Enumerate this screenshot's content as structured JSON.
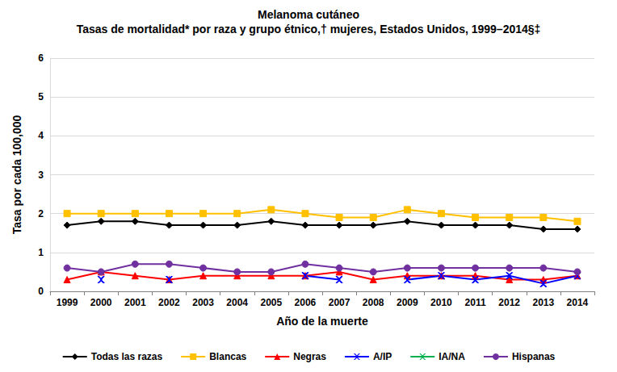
{
  "chart_data": {
    "type": "line",
    "title": "Melanoma cutáneo",
    "subtitle": "Tasas de mortalidad* por raza y grupo étnico,† mujeres, Estados Unidos, 1999–2014§‡",
    "x_label": "Año de la muerte",
    "y_label": "Tasa por cada 100,000",
    "categories": [
      "1999",
      "2000",
      "2001",
      "2002",
      "2003",
      "2004",
      "2005",
      "2006",
      "2007",
      "2008",
      "2009",
      "2010",
      "2011",
      "2012",
      "2013",
      "2014"
    ],
    "ylim": [
      0,
      6
    ],
    "yticks": [
      0,
      1,
      2,
      3,
      4,
      5,
      6
    ],
    "grid": true,
    "legend": "bottom",
    "series": [
      {
        "name": "Todas las razas",
        "color": "#000000",
        "marker": "diamond",
        "values": [
          1.7,
          1.8,
          1.8,
          1.7,
          1.7,
          1.7,
          1.8,
          1.7,
          1.7,
          1.7,
          1.8,
          1.7,
          1.7,
          1.7,
          1.6,
          1.6
        ]
      },
      {
        "name": "Blancas",
        "color": "#FFC000",
        "marker": "square",
        "values": [
          2.0,
          2.0,
          2.0,
          2.0,
          2.0,
          2.0,
          2.1,
          2.0,
          1.9,
          1.9,
          2.1,
          2.0,
          1.9,
          1.9,
          1.9,
          1.8
        ]
      },
      {
        "name": "Negras",
        "color": "#FF0000",
        "marker": "triangle",
        "values": [
          0.3,
          0.5,
          0.4,
          0.3,
          0.4,
          0.4,
          0.4,
          0.4,
          0.5,
          0.3,
          0.4,
          0.4,
          0.4,
          0.3,
          0.3,
          0.4
        ]
      },
      {
        "name": "A/IP",
        "color": "#0000FF",
        "marker": "x",
        "values": [
          null,
          0.3,
          null,
          0.3,
          null,
          null,
          null,
          0.4,
          0.3,
          null,
          0.3,
          0.4,
          0.3,
          0.4,
          0.2,
          0.4
        ]
      },
      {
        "name": "IA/NA",
        "color": "#00B050",
        "marker": "x",
        "values": [
          null,
          null,
          null,
          null,
          null,
          null,
          null,
          null,
          null,
          null,
          null,
          null,
          null,
          null,
          null,
          null
        ]
      },
      {
        "name": "Hispanas",
        "color": "#7030A0",
        "marker": "circle",
        "values": [
          0.6,
          0.5,
          0.7,
          0.7,
          0.6,
          0.5,
          0.5,
          0.7,
          0.6,
          0.5,
          0.6,
          0.6,
          0.6,
          0.6,
          0.6,
          0.5
        ]
      }
    ]
  }
}
